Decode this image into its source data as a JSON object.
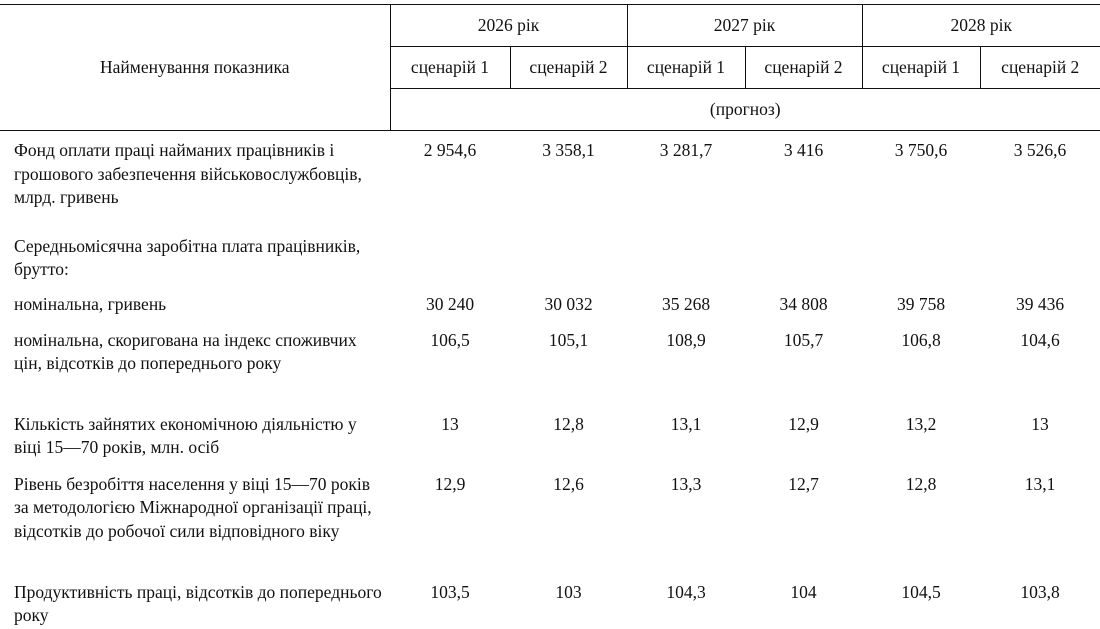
{
  "header": {
    "indicator_label": "Найменування показника",
    "years": [
      "2026 рік",
      "2027 рік",
      "2028 рік"
    ],
    "scenarios": [
      "сценарій 1",
      "сценарій 2",
      "сценарій 1",
      "сценарій 2",
      "сценарій 1",
      "сценарій 2"
    ],
    "forecast_label": "(прогноз)"
  },
  "rows": [
    {
      "label": "Фонд оплати праці найманих працівників і грошового забезпечення військовослужбовців, млрд. гривень",
      "values": [
        "2 954,6",
        "3 358,1",
        "3 281,7",
        "3 416",
        "3 750,6",
        "3 526,6"
      ]
    },
    {
      "label": "Середньомісячна заробітна плата працівників, брутто:",
      "values": [
        "",
        "",
        "",
        "",
        "",
        ""
      ]
    },
    {
      "label": "номінальна, гривень",
      "values": [
        "30 240",
        "30 032",
        "35 268",
        "34 808",
        "39 758",
        "39 436"
      ]
    },
    {
      "label": "номінальна, скоригована на індекс споживчих цін, відсотків до попереднього року",
      "values": [
        "106,5",
        "105,1",
        "108,9",
        "105,7",
        "106,8",
        "104,6"
      ]
    },
    {
      "label": "Кількість зайнятих економічною діяльністю у віці 15—70 років, млн. осіб",
      "values": [
        "13",
        "12,8",
        "13,1",
        "12,9",
        "13,2",
        "13"
      ]
    },
    {
      "label": "Рівень безробіття населення у віці 15—70 років за методологією Міжнародної організації праці, відсотків до робочої сили відповідного віку",
      "values": [
        "12,9",
        "12,6",
        "13,3",
        "12,7",
        "12,8",
        "13,1"
      ]
    },
    {
      "label": "Продуктивність праці, відсотків до попереднього року",
      "values": [
        "103,5",
        "103",
        "104,3",
        "104",
        "104,5",
        "103,8"
      ]
    }
  ]
}
